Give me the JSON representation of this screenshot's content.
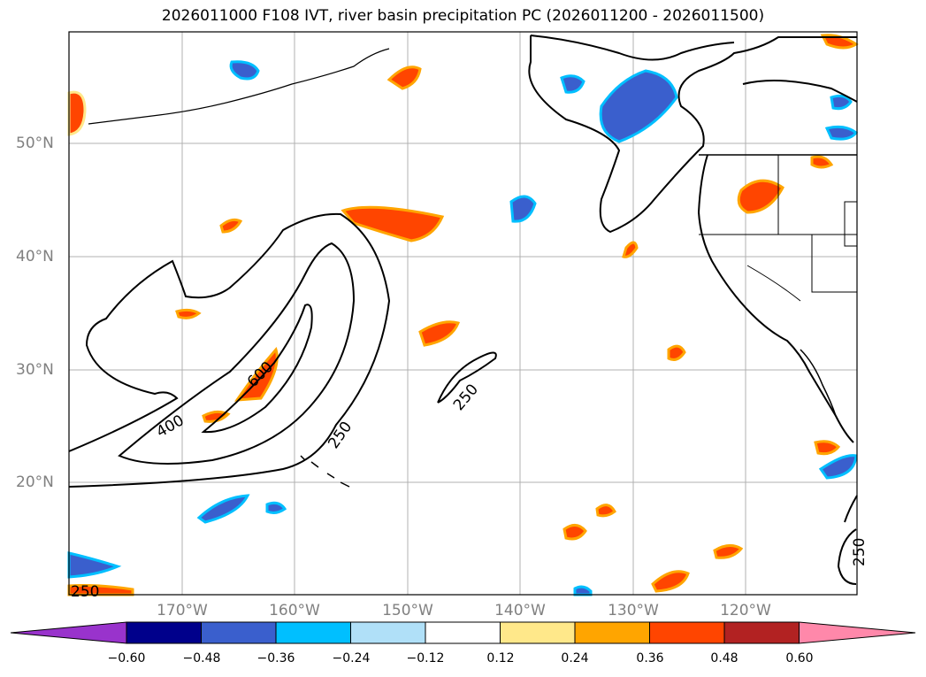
{
  "title": "2026011000 F108 IVT, river basin precipitation PC (2026011200 - 2026011500)",
  "lat_labels": [
    "50°N",
    "40°N",
    "30°N",
    "20°N"
  ],
  "lon_labels": [
    "170°W",
    "160°W",
    "150°W",
    "140°W",
    "130°W",
    "120°W"
  ],
  "contour_labels": [
    "600",
    "400",
    "250",
    "250",
    "250",
    "250"
  ],
  "colorbar": {
    "ticks": [
      "−0.60",
      "−0.48",
      "−0.36",
      "−0.24",
      "−0.12",
      "0.12",
      "0.24",
      "0.36",
      "0.48",
      "0.60"
    ],
    "colors": [
      "#9933cc",
      "#00008b",
      "#3a5fcd",
      "#00bfff",
      "#b0e0f8",
      "#ffffff",
      "#ffe88a",
      "#ffa500",
      "#ff4500",
      "#b22222",
      "#ff88aa"
    ]
  },
  "colors": {
    "contour": "#000000",
    "grid": "#b0b0b0",
    "axis_label": "#808080"
  }
}
